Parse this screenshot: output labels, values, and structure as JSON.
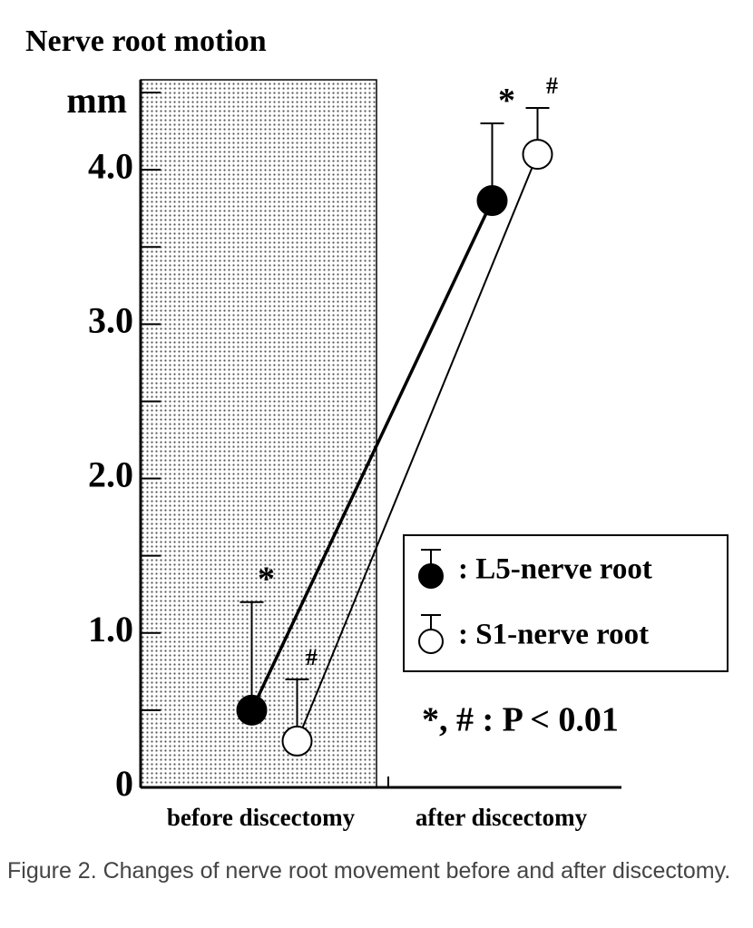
{
  "chart_data": {
    "type": "errorbar-line",
    "title": "Nerve root motion",
    "y_label": "mm",
    "categories": [
      "before discectomy",
      "after discectomy"
    ],
    "series": [
      {
        "name": ": L5-nerve root",
        "color": "#000000",
        "marker_fill": "#000000",
        "values": [
          0.5,
          3.8
        ],
        "errors": [
          0.7,
          0.5
        ],
        "annotation": "*"
      },
      {
        "name": ": S1-nerve root",
        "color": "#000000",
        "marker_fill": "#ffffff",
        "values": [
          0.3,
          4.1
        ],
        "errors": [
          0.4,
          0.3
        ],
        "annotation": "#"
      }
    ],
    "ylim": [
      0,
      4.5
    ],
    "yticks": [
      0,
      {
        "value": 1,
        "label": "1.0"
      },
      {
        "value": 2,
        "label": "2.0"
      },
      {
        "value": 3,
        "label": "3.0"
      },
      {
        "value": 4,
        "label": "4.0"
      }
    ],
    "minor_yticks": [
      0.5,
      1.5,
      2.5,
      3.5,
      4.5
    ],
    "shade_first_category": true,
    "note": "*, # : P < 0.01"
  },
  "caption": "Figure 2. Changes of nerve root movement before and after discectomy."
}
